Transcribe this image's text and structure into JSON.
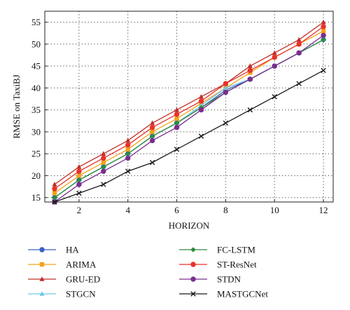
{
  "chart_data": {
    "type": "line",
    "title": "",
    "xlabel": "HORIZON",
    "ylabel": "RMSE on TaxiBJ",
    "xlim": [
      0.6,
      12.4
    ],
    "ylim": [
      14,
      57.5
    ],
    "x": [
      1,
      2,
      3,
      4,
      5,
      6,
      7,
      8,
      9,
      10,
      11,
      12
    ],
    "xticks": [
      2,
      4,
      6,
      8,
      10,
      12
    ],
    "yticks": [
      15,
      20,
      25,
      30,
      35,
      40,
      45,
      50,
      55
    ],
    "xtick_labels": [
      "2",
      "4",
      "6",
      "8",
      "10",
      "12"
    ],
    "ytick_labels": [
      "15",
      "20",
      "25",
      "30",
      "35",
      "40",
      "45",
      "50",
      "55"
    ],
    "grid": true,
    "legend_placement": "below",
    "series": [
      {
        "name": "HA",
        "color": "#3b5fc4",
        "marker": "circle",
        "values": [
          15.0,
          19.0,
          22.0,
          25.0,
          29.0,
          32.0,
          35.5,
          39.5,
          42.0,
          45.0,
          48.0,
          51.0
        ]
      },
      {
        "name": "ARIMA",
        "color": "#f5a21b",
        "marker": "square",
        "values": [
          16.0,
          20.0,
          23.0,
          26.0,
          30.0,
          33.0,
          36.5,
          40.0,
          43.5,
          47.0,
          50.0,
          53.0
        ]
      },
      {
        "name": "GRU-ED",
        "color": "#c0302a",
        "marker": "triangle",
        "values": [
          18.0,
          22.0,
          25.0,
          28.0,
          32.0,
          35.0,
          38.0,
          41.0,
          45.0,
          48.0,
          51.0,
          55.0
        ]
      },
      {
        "name": "STGCN",
        "color": "#6ec9e8",
        "marker": "triangle",
        "values": [
          15.0,
          19.0,
          22.0,
          25.0,
          29.0,
          32.0,
          36.0,
          40.0,
          42.0,
          45.0,
          48.0,
          51.0
        ]
      },
      {
        "name": "FC-LSTM",
        "color": "#2e8b3a",
        "marker": "diamond",
        "values": [
          15.0,
          19.0,
          22.0,
          25.0,
          29.0,
          32.0,
          35.5,
          39.0,
          42.0,
          45.0,
          48.0,
          51.0
        ]
      },
      {
        "name": "ST-ResNet",
        "color": "#e8322a",
        "marker": "circle",
        "values": [
          17.0,
          21.0,
          24.0,
          27.0,
          31.0,
          34.0,
          37.0,
          41.0,
          44.0,
          47.0,
          50.0,
          54.0
        ]
      },
      {
        "name": "STDN",
        "color": "#7b2d8e",
        "marker": "circle",
        "values": [
          14.0,
          18.0,
          21.0,
          24.0,
          28.0,
          31.0,
          35.0,
          39.0,
          42.0,
          45.0,
          48.0,
          52.0
        ]
      },
      {
        "name": "MASTGCNet",
        "color": "#1a1a1a",
        "marker": "x",
        "values": [
          14.0,
          16.0,
          18.0,
          21.0,
          23.0,
          26.0,
          29.0,
          32.0,
          35.0,
          38.0,
          41.0,
          44.0
        ]
      }
    ]
  }
}
